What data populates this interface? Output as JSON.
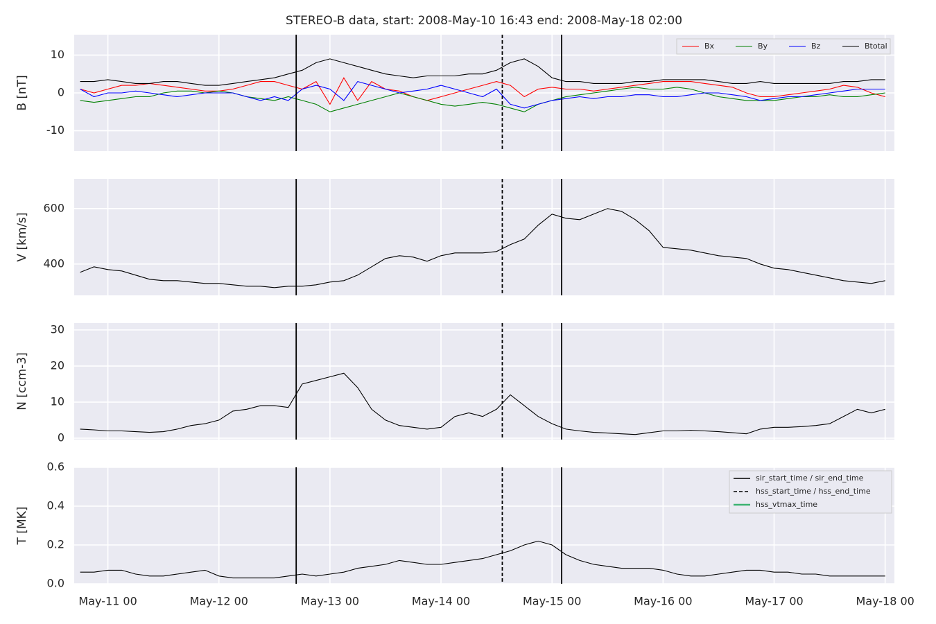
{
  "chart_data": {
    "type": "line",
    "title": "STEREO-B data, start: 2008-May-10 16:43  end: 2008-May-18 02:00",
    "xlim": [
      "May-10 16:43",
      "May-18 02:00"
    ],
    "xticks": [
      {
        "value": "May-11 00:00",
        "label": "May-11 00"
      },
      {
        "value": "May-12 00:00",
        "label": "May-12 00"
      },
      {
        "value": "May-13 00:00",
        "label": "May-13 00"
      },
      {
        "value": "May-14 00:00",
        "label": "May-14 00"
      },
      {
        "value": "May-15 00:00",
        "label": "May-15 00"
      },
      {
        "value": "May-16 00:00",
        "label": "May-16 00"
      },
      {
        "value": "May-17 00:00",
        "label": "May-17 00"
      },
      {
        "value": "May-18 00:00",
        "label": "May-18 00"
      }
    ],
    "x": [
      "May-10 18:00",
      "May-10 21:00",
      "May-11 00:00",
      "May-11 03:00",
      "May-11 06:00",
      "May-11 09:00",
      "May-11 12:00",
      "May-11 15:00",
      "May-11 18:00",
      "May-11 21:00",
      "May-12 00:00",
      "May-12 03:00",
      "May-12 06:00",
      "May-12 09:00",
      "May-12 12:00",
      "May-12 15:00",
      "May-12 18:00",
      "May-12 21:00",
      "May-13 00:00",
      "May-13 03:00",
      "May-13 06:00",
      "May-13 09:00",
      "May-13 12:00",
      "May-13 15:00",
      "May-13 18:00",
      "May-13 21:00",
      "May-14 00:00",
      "May-14 03:00",
      "May-14 06:00",
      "May-14 09:00",
      "May-14 12:00",
      "May-14 15:00",
      "May-14 18:00",
      "May-14 21:00",
      "May-15 00:00",
      "May-15 03:00",
      "May-15 06:00",
      "May-15 09:00",
      "May-15 12:00",
      "May-15 15:00",
      "May-15 18:00",
      "May-15 21:00",
      "May-16 00:00",
      "May-16 03:00",
      "May-16 06:00",
      "May-16 09:00",
      "May-16 12:00",
      "May-16 15:00",
      "May-16 18:00",
      "May-16 21:00",
      "May-17 00:00",
      "May-17 03:00",
      "May-17 06:00",
      "May-17 09:00",
      "May-17 12:00",
      "May-17 15:00",
      "May-17 18:00",
      "May-17 21:00",
      "May-18 00:00"
    ],
    "event_lines": [
      {
        "time": "May-12 16:42",
        "dashed": false
      },
      {
        "time": "May-14 13:15",
        "dashed": true
      },
      {
        "time": "May-15 02:05",
        "dashed": false
      }
    ],
    "event_legend": [
      {
        "label": "sir_start_time / sir_end_time",
        "color": "#000000",
        "dashed": false
      },
      {
        "label": "hss_start_time / hss_end_time",
        "color": "#000000",
        "dashed": true
      },
      {
        "label": "hss_vtmax_time",
        "color": "#3cb371",
        "dashed": false
      }
    ],
    "grid": true,
    "panels": [
      {
        "ylabel": "B [nT]",
        "ylim": [
          -15.4,
          15.4
        ],
        "yticks": [
          -10,
          0,
          10
        ],
        "legend": "upper right",
        "series": [
          {
            "name": "Bx",
            "color": "#ff0000",
            "values": [
              1,
              0,
              1,
              2,
              2,
              2.5,
              2,
              1.5,
              1,
              0.5,
              0.5,
              1,
              2,
              3,
              3,
              2,
              1,
              3,
              -3,
              4,
              -2,
              3,
              1,
              0.5,
              -1,
              -2,
              -1,
              0,
              1,
              2,
              3,
              2,
              -1,
              1,
              1.5,
              1,
              1,
              0.5,
              1,
              1.5,
              2,
              2.5,
              3,
              3,
              3,
              2.5,
              2,
              1.5,
              0,
              -1,
              -1,
              -0.5,
              0,
              0.5,
              1,
              2,
              1.5,
              0,
              -1
            ]
          },
          {
            "name": "By",
            "color": "#008000",
            "values": [
              -2,
              -2.5,
              -2,
              -1.5,
              -1,
              -1,
              0,
              0.5,
              0.5,
              0,
              0.5,
              0,
              -1,
              -1.5,
              -2,
              -1,
              -2,
              -3,
              -5,
              -4,
              -3,
              -2,
              -1,
              0,
              -1,
              -2,
              -3,
              -3.5,
              -3,
              -2.5,
              -3,
              -4,
              -5,
              -3,
              -2,
              -1,
              -0.5,
              0,
              0.5,
              1,
              1.5,
              1,
              1,
              1.5,
              1,
              0,
              -1,
              -1.5,
              -2,
              -2,
              -2,
              -1.5,
              -1,
              -1,
              -0.5,
              -1,
              -1,
              -0.5,
              0
            ]
          },
          {
            "name": "Bz",
            "color": "#0000ff",
            "values": [
              1,
              -1,
              0,
              0,
              0.5,
              0,
              -0.5,
              -1,
              -0.5,
              0,
              0,
              0,
              -1,
              -2,
              -1,
              -2,
              1,
              2,
              1,
              -2,
              3,
              2,
              1,
              0,
              0.5,
              1,
              2,
              1,
              0,
              -1,
              1,
              -3,
              -4,
              -3,
              -2,
              -1.5,
              -1,
              -1.5,
              -1,
              -1,
              -0.5,
              -0.5,
              -1,
              -1,
              -0.5,
              0,
              0,
              -0.5,
              -1,
              -2,
              -1.5,
              -1,
              -1,
              -0.5,
              0,
              0.5,
              1,
              1,
              1
            ]
          },
          {
            "name": "Btotal",
            "color": "#000000",
            "values": [
              3,
              3,
              3.5,
              3,
              2.5,
              2.5,
              3,
              3,
              2.5,
              2,
              2,
              2.5,
              3,
              3.5,
              4,
              5,
              6,
              8,
              9,
              8,
              7,
              6,
              5,
              4.5,
              4,
              4.5,
              4.5,
              4.5,
              5,
              5,
              6,
              8,
              9,
              7,
              4,
              3,
              3,
              2.5,
              2.5,
              2.5,
              3,
              3,
              3.5,
              3.5,
              3.5,
              3.5,
              3,
              2.5,
              2.5,
              3,
              2.5,
              2.5,
              2.5,
              2.5,
              2.5,
              3,
              3,
              3.5,
              3.5
            ]
          }
        ]
      },
      {
        "ylabel": "V [km/s]",
        "ylim": [
          287,
          707
        ],
        "yticks": [
          400,
          600
        ],
        "series": [
          {
            "name": "V",
            "color": "#000000",
            "values": [
              370,
              390,
              380,
              375,
              360,
              345,
              340,
              340,
              335,
              330,
              330,
              325,
              320,
              320,
              315,
              320,
              320,
              325,
              335,
              340,
              360,
              390,
              420,
              430,
              425,
              410,
              430,
              440,
              440,
              440,
              445,
              470,
              490,
              540,
              580,
              565,
              560,
              580,
              600,
              590,
              560,
              520,
              460,
              455,
              450,
              440,
              430,
              425,
              420,
              400,
              385,
              380,
              370,
              360,
              350,
              340,
              335,
              330,
              340
            ]
          }
        ]
      },
      {
        "ylabel": "N [ccm-3]",
        "ylim": [
          -0.4,
          31.9
        ],
        "yticks": [
          0,
          10,
          20,
          30
        ],
        "series": [
          {
            "name": "N",
            "color": "#000000",
            "values": [
              2.5,
              2.3,
              2,
              2,
              1.8,
              1.6,
              1.8,
              2.5,
              3.5,
              4,
              5,
              7.5,
              8,
              9,
              9,
              8.5,
              15,
              16,
              17,
              18,
              14,
              8,
              5,
              3.5,
              3,
              2.5,
              3,
              6,
              7,
              6,
              8,
              12,
              9,
              6,
              4,
              2.5,
              2,
              1.6,
              1.4,
              1.2,
              1,
              1.5,
              2,
              2,
              2.2,
              2,
              1.8,
              1.5,
              1.2,
              2.5,
              3,
              3,
              3.2,
              3.5,
              4,
              6,
              8,
              7,
              8
            ]
          }
        ]
      },
      {
        "ylabel": "T [MK]",
        "ylim": [
          0,
          0.6
        ],
        "yticks": [
          {
            "value": 0,
            "label": "0.0"
          },
          0.2,
          0.4,
          0.6
        ],
        "event_legend_here": true,
        "series": [
          {
            "name": "T",
            "color": "#000000",
            "values": [
              0.06,
              0.06,
              0.07,
              0.07,
              0.05,
              0.04,
              0.04,
              0.05,
              0.06,
              0.07,
              0.04,
              0.03,
              0.03,
              0.03,
              0.03,
              0.04,
              0.05,
              0.04,
              0.05,
              0.06,
              0.08,
              0.09,
              0.1,
              0.12,
              0.11,
              0.1,
              0.1,
              0.11,
              0.12,
              0.13,
              0.15,
              0.17,
              0.2,
              0.22,
              0.2,
              0.15,
              0.12,
              0.1,
              0.09,
              0.08,
              0.08,
              0.08,
              0.07,
              0.05,
              0.04,
              0.04,
              0.05,
              0.06,
              0.07,
              0.07,
              0.06,
              0.06,
              0.05,
              0.05,
              0.04,
              0.04,
              0.04,
              0.04,
              0.04
            ]
          }
        ]
      }
    ]
  }
}
